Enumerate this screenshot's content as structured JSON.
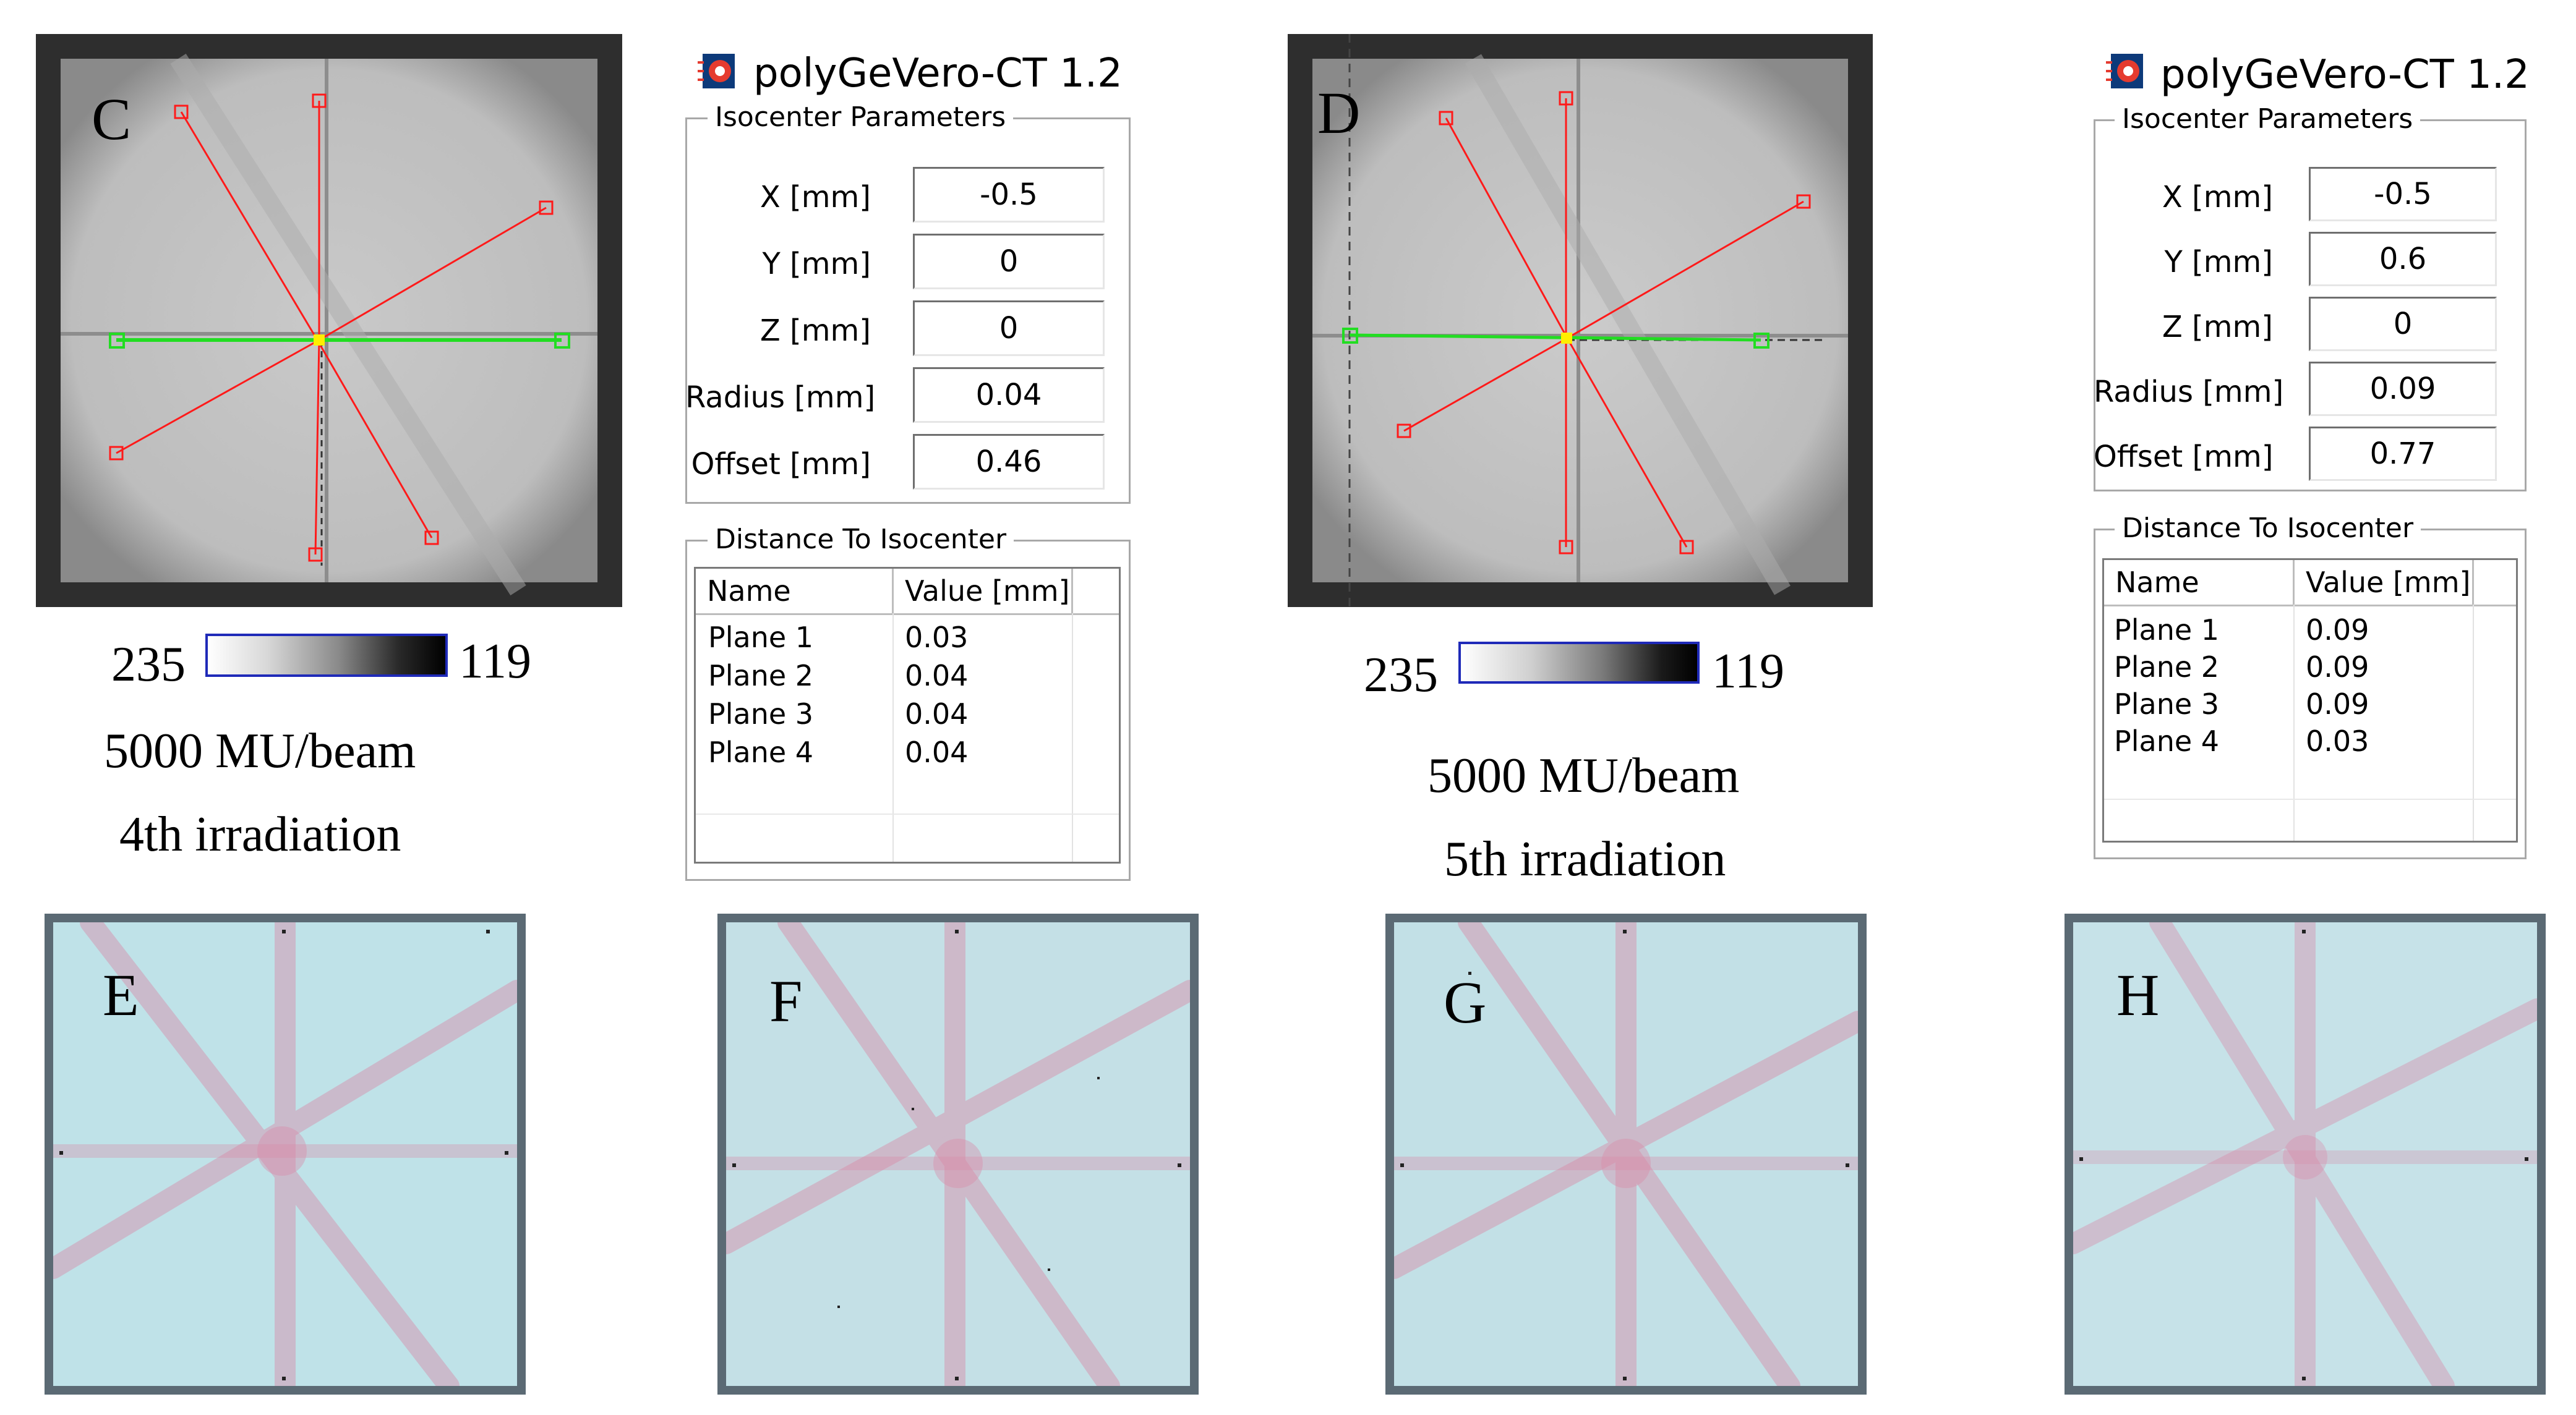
{
  "panels": {
    "c": {
      "letter": "C",
      "scale": {
        "min": "235",
        "max": "119"
      },
      "caption_line1": "5000 MU/beam",
      "caption_line2": "4th irradiation"
    },
    "d": {
      "letter": "D",
      "scale": {
        "min": "235",
        "max": "119"
      },
      "caption_line1": "5000 MU/beam",
      "caption_line2": "5th irradiation"
    },
    "e": {
      "letter": "E"
    },
    "f": {
      "letter": "F"
    },
    "g": {
      "letter": "G"
    },
    "h": {
      "letter": "H"
    }
  },
  "windows": [
    {
      "title": "polyGeVero-CT 1.2",
      "icon": "app-logo-icon",
      "iso_group": "Isocenter Parameters",
      "params": [
        {
          "label": "X [mm]",
          "value": "-0.5"
        },
        {
          "label": "Y [mm]",
          "value": "0"
        },
        {
          "label": "Z [mm]",
          "value": "0"
        },
        {
          "label": "Radius [mm]",
          "value": "0.04"
        },
        {
          "label": "Offset [mm]",
          "value": "0.46"
        }
      ],
      "dist_group": "Distance To Isocenter",
      "columns": [
        "Name",
        "Value [mm]"
      ],
      "rows": [
        {
          "name": "Plane 1",
          "value": "0.03"
        },
        {
          "name": "Plane 2",
          "value": "0.04"
        },
        {
          "name": "Plane 3",
          "value": "0.04"
        },
        {
          "name": "Plane 4",
          "value": "0.04"
        }
      ]
    },
    {
      "title": "polyGeVero-CT 1.2",
      "icon": "app-logo-icon",
      "iso_group": "Isocenter Parameters",
      "params": [
        {
          "label": "X [mm]",
          "value": "-0.5"
        },
        {
          "label": "Y [mm]",
          "value": "0.6"
        },
        {
          "label": "Z [mm]",
          "value": "0"
        },
        {
          "label": "Radius [mm]",
          "value": "0.09"
        },
        {
          "label": "Offset [mm]",
          "value": "0.77"
        }
      ],
      "dist_group": "Distance To Isocenter",
      "columns": [
        "Name",
        "Value [mm]"
      ],
      "rows": [
        {
          "name": "Plane 1",
          "value": "0.09"
        },
        {
          "name": "Plane 2",
          "value": "0.09"
        },
        {
          "name": "Plane 3",
          "value": "0.09"
        },
        {
          "name": "Plane 4",
          "value": "0.03"
        }
      ]
    }
  ],
  "colors": {
    "beam_line": "#ff1a1a",
    "reference_line": "#22dd22",
    "isocenter_marker": "#ffee00",
    "scale_border": "#1f2ab8",
    "star_shot": "#d98aa8"
  }
}
